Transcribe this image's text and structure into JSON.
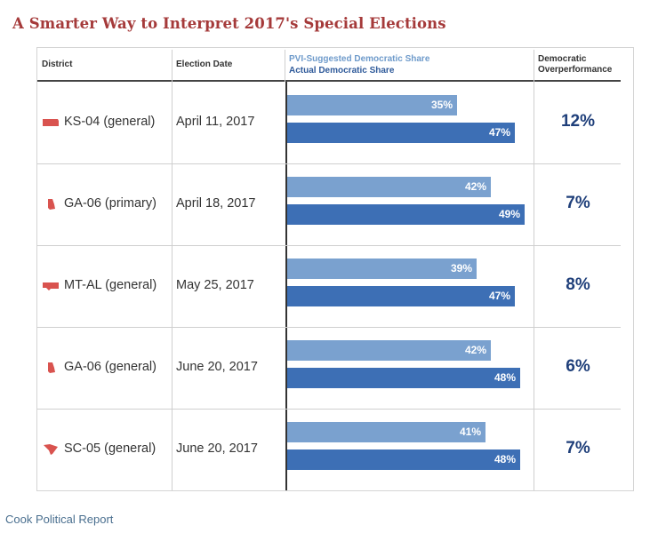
{
  "title": "A Smarter Way to Interpret 2017's Special Elections",
  "source": "Cook Political Report",
  "headers": {
    "district": "District",
    "date": "Election Date",
    "legend_pvi": "PVI-Suggested Democratic Share",
    "legend_actual": "Actual Democratic Share",
    "overperf_line1": "Democratic",
    "overperf_line2": "Overperformance"
  },
  "colors": {
    "title": "#a53a3a",
    "state_icon": "#d9534f",
    "pvi_bar": "#7aa1cf",
    "actual_bar": "#3d6fb5",
    "overperformance_text": "#1f3f7a"
  },
  "chart_data": {
    "type": "bar",
    "orientation": "horizontal",
    "categories": [
      "KS-04 (general)",
      "GA-06 (primary)",
      "MT-AL (general)",
      "GA-06 (general)",
      "SC-05 (general)"
    ],
    "series": [
      {
        "name": "PVI-Suggested Democratic Share",
        "values": [
          35,
          42,
          39,
          42,
          41
        ]
      },
      {
        "name": "Actual Democratic Share",
        "values": [
          47,
          49,
          47,
          48,
          48
        ]
      }
    ],
    "unit": "%"
  },
  "rows": [
    {
      "district": "KS-04 (general)",
      "date": "April 11, 2017",
      "state_icon": "kansas-icon",
      "pvi": 35,
      "actual": 47,
      "pvi_label": "35%",
      "actual_label": "47%",
      "overperformance": "12%"
    },
    {
      "district": "GA-06 (primary)",
      "date": "April 18, 2017",
      "state_icon": "georgia-icon",
      "pvi": 42,
      "actual": 49,
      "pvi_label": "42%",
      "actual_label": "49%",
      "overperformance": "7%"
    },
    {
      "district": "MT-AL (general)",
      "date": "May 25, 2017",
      "state_icon": "montana-icon",
      "pvi": 39,
      "actual": 47,
      "pvi_label": "39%",
      "actual_label": "47%",
      "overperformance": "8%"
    },
    {
      "district": "GA-06 (general)",
      "date": "June 20, 2017",
      "state_icon": "georgia-icon",
      "pvi": 42,
      "actual": 48,
      "pvi_label": "42%",
      "actual_label": "48%",
      "overperformance": "6%"
    },
    {
      "district": "SC-05 (general)",
      "date": "June 20, 2017",
      "state_icon": "south-carolina-icon",
      "pvi": 41,
      "actual": 48,
      "pvi_label": "41%",
      "actual_label": "48%",
      "overperformance": "7%"
    }
  ]
}
